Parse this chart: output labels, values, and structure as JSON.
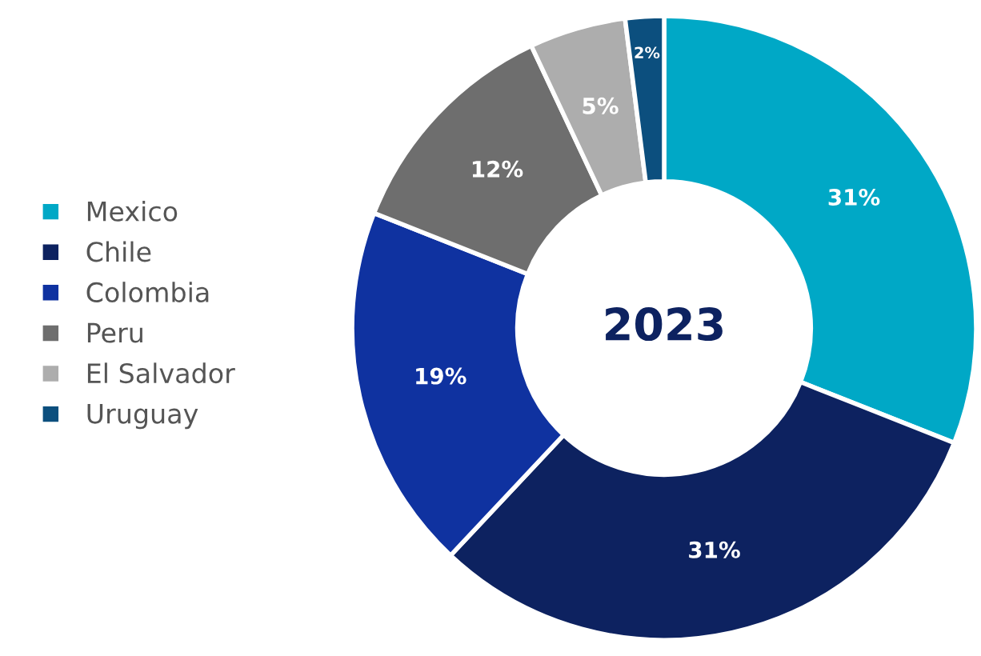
{
  "chart_data": {
    "type": "donut",
    "categories": [
      "Mexico",
      "Chile",
      "Colombia",
      "Peru",
      "El Salvador",
      "Uruguay"
    ],
    "values": [
      31,
      31,
      19,
      12,
      5,
      2
    ],
    "colors": [
      "#00a8c6",
      "#0d2260",
      "#0f32a0",
      "#6e6e6e",
      "#adadad",
      "#0c4f7e"
    ],
    "value_labels": [
      "31%",
      "31%",
      "19%",
      "12%",
      "5%",
      "2%"
    ],
    "annotations": [
      "2023"
    ],
    "legend": "left"
  }
}
